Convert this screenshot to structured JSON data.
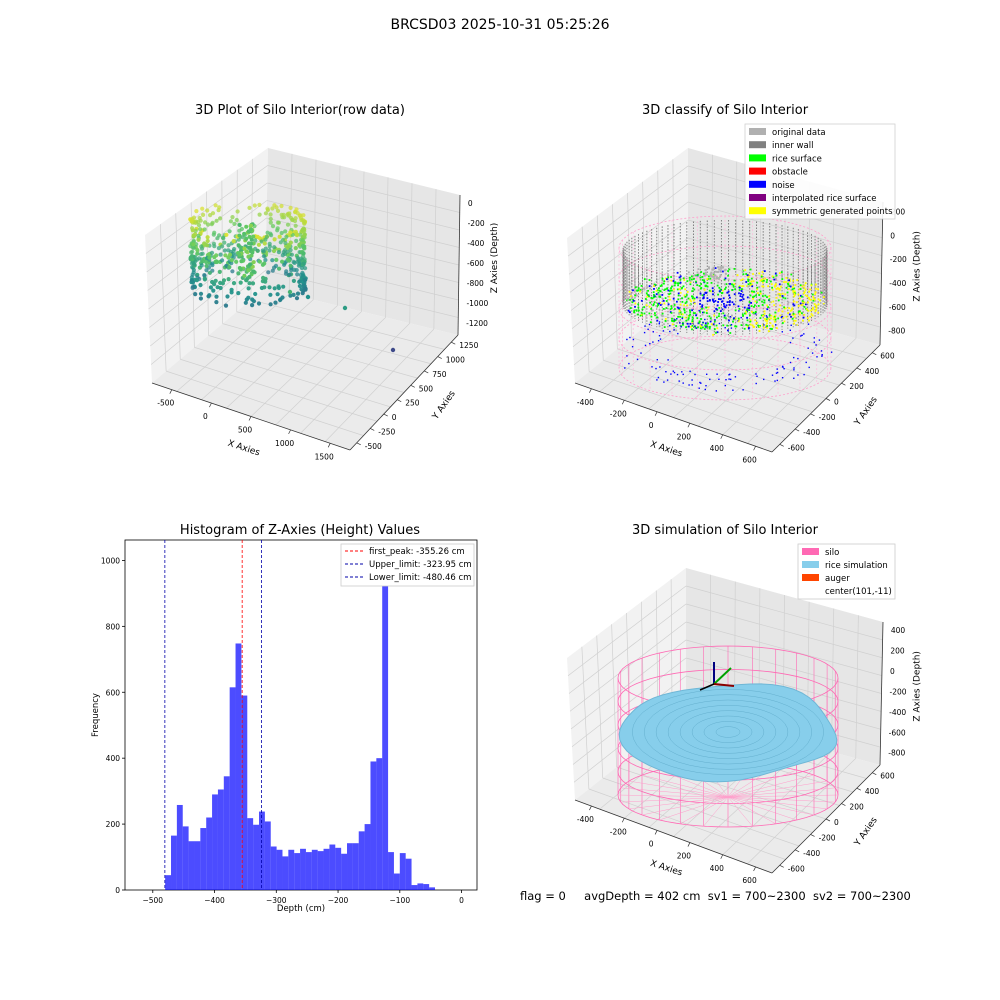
{
  "suptitle": "BRCSD03 2025-10-31 05:25:26",
  "footer": {
    "flag": "flag = 0",
    "avg_depth": "avgDepth = 402 cm",
    "sv1": "sv1 = 700~2300",
    "sv2": "sv2 = 700~2300"
  },
  "chart_data": [
    {
      "type": "scatter",
      "title": "3D Plot of Silo Interior(row data)",
      "xlabel": "X Axies",
      "ylabel": "Y Axies",
      "zlabel": "Z Axies (Depth)",
      "x_ticks": [
        "-500",
        "0",
        "500",
        "1000",
        "1500"
      ],
      "y_ticks": [
        "-500",
        "-250",
        "0",
        "250",
        "500",
        "750",
        "1000",
        "1250"
      ],
      "z_ticks": [
        "0",
        "-200",
        "-400",
        "-600",
        "-800",
        "-1000",
        "-1200"
      ],
      "colormap": "viridis",
      "outliers": [
        {
          "x": 700,
          "y": 500,
          "z": -1000
        },
        {
          "x": 1100,
          "y": 400,
          "z": -1200
        }
      ]
    },
    {
      "type": "scatter",
      "title": "3D classify of Silo Interior",
      "xlabel": "X Axies",
      "ylabel": "Y Axies",
      "zlabel": "Z Axies (Depth)",
      "x_ticks": [
        "-400",
        "-200",
        "0",
        "200",
        "400",
        "600"
      ],
      "y_ticks": [
        "-600",
        "-400",
        "-200",
        "0",
        "200",
        "400",
        "600"
      ],
      "z_ticks": [
        "200",
        "0",
        "-200",
        "-400",
        "-600",
        "-800"
      ],
      "legend_position": "upper-right",
      "legend": [
        {
          "label": "original data",
          "color": "#b0b0b0"
        },
        {
          "label": "inner wall",
          "color": "#808080"
        },
        {
          "label": "rice surface",
          "color": "#00ff00"
        },
        {
          "label": "obstacle",
          "color": "#ff0000"
        },
        {
          "label": "noise",
          "color": "#0000ff"
        },
        {
          "label": "interpolated rice surface",
          "color": "#800080"
        },
        {
          "label": "symmetric generated points",
          "color": "#ffff00"
        }
      ]
    },
    {
      "type": "bar",
      "title": "Histogram of Z-Axies (Height) Values",
      "xlabel": "Depth (cm)",
      "ylabel": "Frequency",
      "xlim": [
        -545,
        25
      ],
      "ylim": [
        0,
        1062
      ],
      "x_ticks": [
        "−500",
        "−400",
        "−300",
        "−200",
        "−100",
        "0"
      ],
      "y_ticks": [
        "0",
        "200",
        "400",
        "600",
        "800",
        "1000"
      ],
      "bin_start": -480,
      "bin_width": 9.5,
      "values": [
        45,
        165,
        258,
        193,
        148,
        148,
        188,
        220,
        290,
        305,
        345,
        615,
        748,
        590,
        218,
        198,
        238,
        208,
        132,
        122,
        102,
        122,
        112,
        125,
        115,
        122,
        118,
        125,
        138,
        128,
        110,
        142,
        142,
        178,
        200,
        390,
        400,
        1000,
        115,
        50,
        112,
        95,
        15,
        20,
        18,
        8
      ],
      "bar_color": "#0000ff",
      "lines": [
        {
          "label": "first_peak: -355.26 cm",
          "x": -355.26,
          "color": "#ff0000"
        },
        {
          "label": "Upper_limit: -323.95 cm",
          "x": -323.95,
          "color": "#0000aa"
        },
        {
          "label": "Lower_limit: -480.46 cm",
          "x": -480.46,
          "color": "#0000aa"
        }
      ],
      "legend_position": "upper-right"
    },
    {
      "type": "scatter",
      "title": "3D simulation of Silo Interior",
      "xlabel": "X Axies",
      "ylabel": "Y Axies",
      "zlabel": "Z Axies (Depth)",
      "x_ticks": [
        "-400",
        "-200",
        "0",
        "200",
        "400",
        "600"
      ],
      "y_ticks": [
        "-600",
        "-400",
        "-200",
        "0",
        "200",
        "400",
        "600"
      ],
      "z_ticks": [
        "400",
        "200",
        "0",
        "-200",
        "-400",
        "-600",
        "-800"
      ],
      "legend_position": "upper-right",
      "legend": [
        {
          "label": "silo",
          "color": "#ff69b4"
        },
        {
          "label": "rice simulation",
          "color": "#87ceeb"
        },
        {
          "label": "auger",
          "color": "#ff4500"
        },
        {
          "label": "center(101,-11)",
          "color": ""
        }
      ]
    }
  ]
}
